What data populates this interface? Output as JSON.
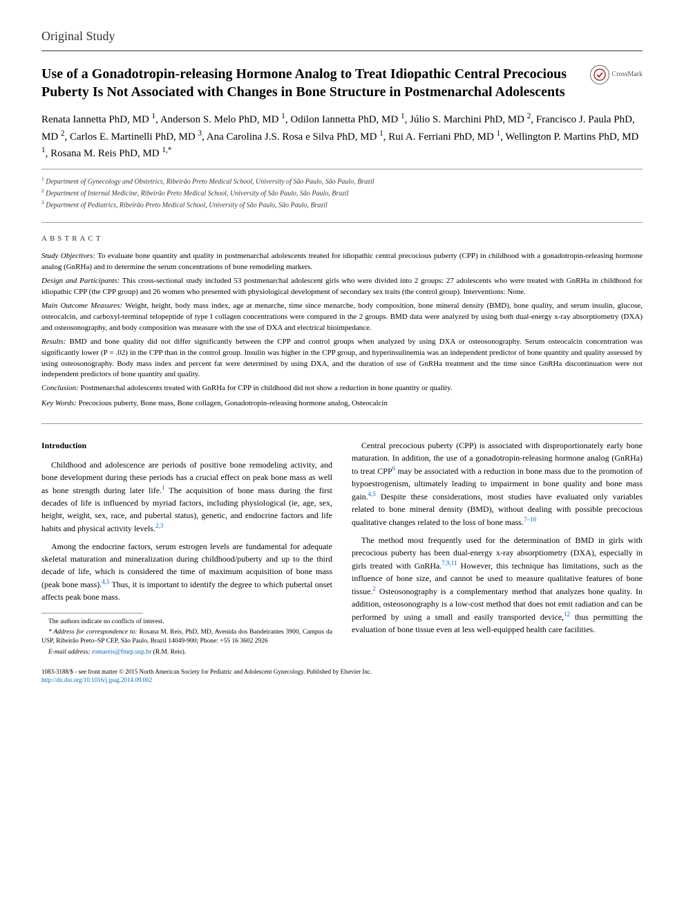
{
  "section_label": "Original Study",
  "title": "Use of a Gonadotropin-releasing Hormone Analog to Treat Idiopathic Central Precocious Puberty Is Not Associated with Changes in Bone Structure in Postmenarchal Adolescents",
  "crossmark_label": "CrossMark",
  "authors_html": "Renata Iannetta PhD, MD <sup>1</sup>, Anderson S. Melo PhD, MD <sup>1</sup>, Odilon Iannetta PhD, MD <sup>1</sup>, Júlio S. Marchini PhD, MD <sup>2</sup>, Francisco J. Paula PhD, MD <sup>2</sup>, Carlos E. Martinelli PhD, MD <sup>3</sup>, Ana Carolina J.S. Rosa e Silva PhD, MD <sup>1</sup>, Rui A. Ferriani PhD, MD <sup>1</sup>, Wellington P. Martins PhD, MD <sup>1</sup>, Rosana M. Reis PhD, MD <sup>1,*</sup>",
  "affiliations": [
    "Department of Gynecology and Obstetrics, Ribeirão Preto Medical School, University of São Paulo, São Paulo, Brazil",
    "Department of Internal Medicine, Ribeirão Preto Medical School, University of São Paulo, São Paulo, Brazil",
    "Department of Pediatrics, Ribeirão Preto Medical School, University of São Paulo, São Paulo, Brazil"
  ],
  "abstract_label": "ABSTRACT",
  "abstract": {
    "objectives_label": "Study Objectives:",
    "objectives": "To evaluate bone quantity and quality in postmenarchal adolescents treated for idiopathic central precocious puberty (CPP) in childhood with a gonadotropin-releasing hormone analog (GnRHa) and to determine the serum concentrations of bone remodeling markers.",
    "design_label": "Design and Participants:",
    "design": "This cross-sectional study included 53 postmenarchal adolescent girls who were divided into 2 groups: 27 adolescents who were treated with GnRHa in childhood for idiopathic CPP (the CPP group) and 26 women who presented with physiological development of secondary sex traits (the control group). Interventions: None.",
    "measures_label": "Main Outcome Measures:",
    "measures": "Weight, height, body mass index, age at menarche, time since menarche, body composition, bone mineral density (BMD), bone quality, and serum insulin, glucose, osteocalcin, and carboxyl-terminal telopeptide of type I collagen concentrations were compared in the 2 groups. BMD data were analyzed by using both dual-energy x-ray absorptiometry (DXA) and osteosonography, and body composition was measure with the use of DXA and electrical bioimpedance.",
    "results_label": "Results:",
    "results": "BMD and bone quality did not differ significantly between the CPP and control groups when analyzed by using DXA or osteosonography. Serum osteocalcin concentration was significantly lower (P = .02) in the CPP than in the control group. Insulin was higher in the CPP group, and hyperinsulinemia was an independent predictor of bone quantity and quality assessed by using osteosonography. Body mass index and percent fat were determined by using DXA, and the duration of use of GnRHa treatment and the time since GnRHa discontinuation were not independent predictors of bone quantity and quality.",
    "conclusion_label": "Conclusion:",
    "conclusion": "Postmenarchal adolescents treated with GnRHa for CPP in childhood did not show a reduction in bone quantity or quality."
  },
  "keywords_label": "Key Words:",
  "keywords": "Precocious puberty, Bone mass, Bone collagen, Gonadotropin-releasing hormone analog, Osteocalcin",
  "intro_label": "Introduction",
  "col1": {
    "p1": "Childhood and adolescence are periods of positive bone remodeling activity, and bone development during these periods has a crucial effect on peak bone mass as well as bone strength during later life.<sup>1</sup> The acquisition of bone mass during the first decades of life is influenced by myriad factors, including physiological (ie, age, sex, height, weight, sex, race, and pubertal status), genetic, and endocrine factors and life habits and physical activity levels.<sup>2,3</sup>",
    "p2": "Among the endocrine factors, serum estrogen levels are fundamental for adequate skeletal maturation and mineralization during childhood/puberty and up to the third decade of life, which is considered the time of maximum acquisition of bone mass (peak bone mass).<sup>4,5</sup> Thus, it is important to identify the degree to which pubertal onset affects peak bone mass."
  },
  "col2": {
    "p1": "Central precocious puberty (CPP) is associated with disproportionately early bone maturation. In addition, the use of a gonadotropin-releasing hormone analog (GnRHa) to treat CPP<sup>6</sup> may be associated with a reduction in bone mass due to the promotion of hypoestrogenism, ultimately leading to impairment in bone quality and bone mass gain.<sup>4,5</sup> Despite these considerations, most studies have evaluated only variables related to bone mineral density (BMD), without dealing with possible precocious qualitative changes related to the loss of bone mass.<sup>7–10</sup>",
    "p2": "The method most frequently used for the determination of BMD in girls with precocious puberty has been dual-energy x-ray absorptiometry (DXA), especially in girls treated with GnRHa.<sup>7,9,11</sup> However, this technique has limitations, such as the influence of bone size, and cannot be used to measure qualitative features of bone tissue.<sup>2</sup> Osteosonography is a complementary method that analyzes bone quality. In addition, osteosonography is a low-cost method that does not emit radiation and can be performed by using a small and easily transported device,<sup>12</sup> thus permitting the evaluation of bone tissue even at less well-equipped health care facilities."
  },
  "footnotes": {
    "conflict": "The authors indicate no conflicts of interest.",
    "correspondence_label": "* Address for correspondence to:",
    "correspondence": "Rosana M. Reis, PhD, MD, Avenida dos Bandeirantes 3900, Campus da USP, Ribeirão Preto–SP CEP, São Paulo, Brazil 14049-900; Phone: +55 16 3602 2926",
    "email_label": "E-mail address:",
    "email": "romareis@fmrp.usp.br",
    "email_suffix": "(R.M. Reis)."
  },
  "copyright": {
    "line": "1083-3188/$ - see front matter © 2015 North American Society for Pediatric and Adolescent Gynecology. Published by Elsevier Inc.",
    "doi": "http://dx.doi.org/10.1016/j.jpag.2014.09.002"
  },
  "colors": {
    "link": "#0066cc",
    "text": "#000000",
    "rule": "#333333"
  }
}
